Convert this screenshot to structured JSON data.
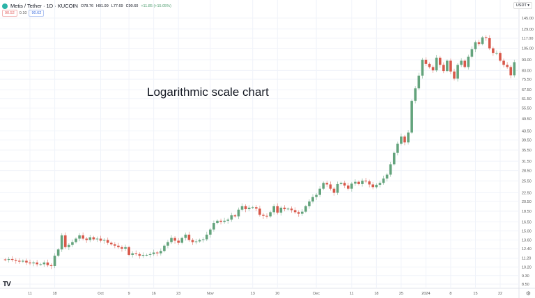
{
  "header": {
    "symbol": "Metis / Tether · 1D · KUCOIN",
    "open": "O78.76",
    "high": "H91.99",
    "low": "L77.69",
    "close": "C90.60",
    "change": "+11.85 (+15.05%)",
    "bid": "90.52",
    "spread": "0.10",
    "ask": "90.62"
  },
  "currency_button": "USDT ▾",
  "annotation": "Logarithmic scale chart",
  "icons": {
    "logo": "tradingview-logo",
    "settings": "gear-icon",
    "symbol": "metis-coin-icon"
  },
  "colors": {
    "up": "#63a37c",
    "down": "#d8584a",
    "grid": "#f0f3fa",
    "bid": "#e25b5b",
    "ask": "#3f6fe0"
  },
  "chart_data": {
    "type": "candlestick",
    "scale": "log",
    "grid": true,
    "x_range": [
      "2023-09-04",
      "2024-01-26"
    ],
    "y_ticks": [
      "145.00",
      "129.00",
      "117.00",
      "105.00",
      "93.00",
      "83.00",
      "75.50",
      "67.50",
      "61.50",
      "55.50",
      "49.50",
      "43.50",
      "39.50",
      "35.50",
      "31.50",
      "28.50",
      "25.50",
      "22.50",
      "20.50",
      "18.50",
      "16.50",
      "15.00",
      "13.60",
      "12.40",
      "11.20",
      "10.20",
      "9.30",
      "8.50"
    ],
    "x_ticks": [
      {
        "label": "11",
        "date": "2023-09-11"
      },
      {
        "label": "18",
        "date": "2023-09-18"
      },
      {
        "label": "Oct",
        "date": "2023-10-01"
      },
      {
        "label": "9",
        "date": "2023-10-09"
      },
      {
        "label": "16",
        "date": "2023-10-16"
      },
      {
        "label": "23",
        "date": "2023-10-23"
      },
      {
        "label": "Nov",
        "date": "2023-11-01"
      },
      {
        "label": "13",
        "date": "2023-11-13"
      },
      {
        "label": "20",
        "date": "2023-11-20"
      },
      {
        "label": "Dec",
        "date": "2023-12-01"
      },
      {
        "label": "11",
        "date": "2023-12-11"
      },
      {
        "label": "18",
        "date": "2023-12-18"
      },
      {
        "label": "25",
        "date": "2023-12-25"
      },
      {
        "label": "2024",
        "date": "2024-01-01"
      },
      {
        "label": "8",
        "date": "2024-01-08"
      },
      {
        "label": "15",
        "date": "2024-01-15"
      },
      {
        "label": "22",
        "date": "2024-01-22"
      }
    ],
    "closes": [
      11.0,
      11.1,
      11.0,
      10.9,
      10.8,
      10.9,
      10.7,
      10.6,
      10.7,
      10.5,
      10.5,
      10.7,
      10.4,
      10.3,
      11.5,
      12.3,
      14.3,
      12.6,
      12.9,
      13.3,
      13.8,
      14.3,
      13.8,
      13.6,
      14.0,
      13.7,
      13.8,
      13.5,
      13.6,
      13.2,
      13.0,
      12.8,
      12.6,
      12.4,
      12.6,
      11.6,
      11.8,
      11.7,
      11.5,
      11.6,
      11.6,
      11.7,
      11.9,
      11.8,
      12.1,
      12.8,
      13.3,
      13.9,
      13.5,
      13.2,
      13.9,
      14.4,
      13.6,
      13.3,
      13.4,
      13.6,
      13.7,
      14.4,
      15.2,
      16.3,
      16.7,
      16.5,
      16.7,
      16.9,
      17.7,
      17.5,
      18.8,
      19.5,
      18.9,
      19.2,
      19.3,
      19.0,
      17.8,
      17.6,
      17.5,
      18.3,
      19.5,
      18.2,
      19.2,
      18.9,
      19.0,
      18.7,
      18.3,
      18.0,
      18.4,
      19.5,
      20.5,
      21.5,
      22.0,
      23.5,
      25.0,
      24.6,
      23.5,
      22.5,
      24.7,
      25.0,
      24.3,
      23.5,
      24.8,
      25.3,
      24.7,
      25.6,
      25.4,
      24.6,
      23.9,
      24.5,
      25.0,
      26.2,
      27.3,
      30.5,
      34.5,
      38.0,
      41.0,
      38.5,
      42.8,
      60.0,
      68.5,
      78.5,
      93.0,
      89.0,
      86.0,
      83.0,
      95.0,
      88.0,
      82.5,
      92.0,
      82.0,
      76.0,
      88.0,
      92.0,
      86.0,
      96.0,
      104.0,
      112.0,
      110.0,
      118.0,
      117.0,
      105.0,
      100.0,
      100.0,
      92.0,
      88.0,
      86.0,
      78.76,
      90.6
    ]
  }
}
